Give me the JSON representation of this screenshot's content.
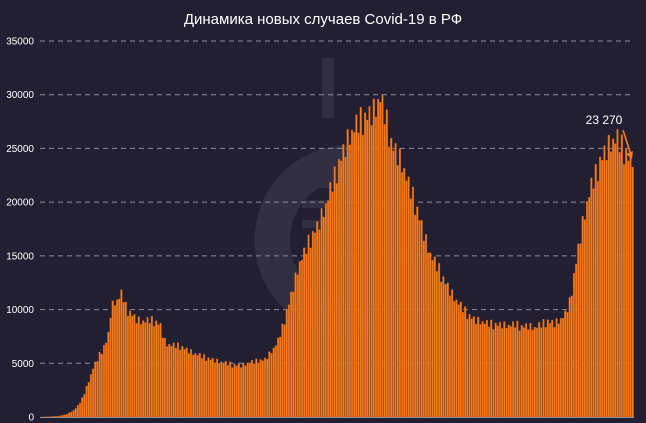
{
  "chart_data": {
    "type": "bar",
    "title": "Динамика новых случаев Covid-19 в РФ",
    "xlabel": "",
    "ylabel": "",
    "ylim": [
      0,
      35000
    ],
    "y_ticks": [
      "35000",
      "30000",
      "25000",
      "20000",
      "15000",
      "10000",
      "5000",
      "0"
    ],
    "y_tick_values": [
      35000,
      30000,
      25000,
      20000,
      15000,
      10000,
      5000,
      0
    ],
    "grid": true,
    "annotation": {
      "text": "23 270",
      "value": 23270
    },
    "colors": {
      "background": "#221f33",
      "bar": "#f47b20",
      "bar_edge": "#b4520c",
      "grid": "#8f8c9e",
      "text": "#ffffff"
    },
    "anchors": [
      [
        0,
        0
      ],
      [
        8,
        80
      ],
      [
        12,
        250
      ],
      [
        15,
        600
      ],
      [
        18,
        1300
      ],
      [
        20,
        2200
      ],
      [
        22,
        3300
      ],
      [
        24,
        4500
      ],
      [
        26,
        5300
      ],
      [
        27,
        5700
      ],
      [
        28,
        6100
      ],
      [
        30,
        6900
      ],
      [
        31,
        7600
      ],
      [
        32,
        9500
      ],
      [
        33,
        10300
      ],
      [
        34,
        10600
      ],
      [
        35,
        10700
      ],
      [
        36,
        11000
      ],
      [
        37,
        11300
      ],
      [
        38,
        10900
      ],
      [
        39,
        10100
      ],
      [
        40,
        9800
      ],
      [
        42,
        9400
      ],
      [
        44,
        9000
      ],
      [
        46,
        8800
      ],
      [
        48,
        8800
      ],
      [
        50,
        8900
      ],
      [
        52,
        8800
      ],
      [
        54,
        8600
      ],
      [
        55,
        8400
      ],
      [
        56,
        7600
      ],
      [
        57,
        7000
      ],
      [
        58,
        6700
      ],
      [
        60,
        6600
      ],
      [
        64,
        6500
      ],
      [
        66,
        6300
      ],
      [
        70,
        5900
      ],
      [
        75,
        5500
      ],
      [
        80,
        5200
      ],
      [
        85,
        4950
      ],
      [
        88,
        4800
      ],
      [
        92,
        4750
      ],
      [
        96,
        5000
      ],
      [
        100,
        5150
      ],
      [
        103,
        5300
      ],
      [
        105,
        5800
      ],
      [
        107,
        6300
      ],
      [
        109,
        7000
      ],
      [
        111,
        8200
      ],
      [
        113,
        9700
      ],
      [
        115,
        11200
      ],
      [
        117,
        12800
      ],
      [
        119,
        14200
      ],
      [
        121,
        15000
      ],
      [
        123,
        16000
      ],
      [
        125,
        16800
      ],
      [
        127,
        17500
      ],
      [
        129,
        18500
      ],
      [
        131,
        19500
      ],
      [
        133,
        20800
      ],
      [
        135,
        22000
      ],
      [
        137,
        23300
      ],
      [
        139,
        24400
      ],
      [
        141,
        25500
      ],
      [
        143,
        26200
      ],
      [
        145,
        26800
      ],
      [
        147,
        27200
      ],
      [
        149,
        27500
      ],
      [
        151,
        27800
      ],
      [
        153,
        28200
      ],
      [
        154,
        28500
      ],
      [
        155,
        29000
      ],
      [
        156,
        29300
      ],
      [
        157,
        28600
      ],
      [
        158,
        27800
      ],
      [
        159,
        27000
      ],
      [
        160,
        26200
      ],
      [
        161,
        25200
      ],
      [
        162,
        24800
      ],
      [
        163,
        24500
      ],
      [
        165,
        23800
      ],
      [
        167,
        22700
      ],
      [
        169,
        21300
      ],
      [
        171,
        20200
      ],
      [
        173,
        19000
      ],
      [
        175,
        17600
      ],
      [
        177,
        16200
      ],
      [
        179,
        15000
      ],
      [
        181,
        14200
      ],
      [
        183,
        13500
      ],
      [
        185,
        12700
      ],
      [
        187,
        12000
      ],
      [
        189,
        11300
      ],
      [
        191,
        10700
      ],
      [
        193,
        10200
      ],
      [
        195,
        9700
      ],
      [
        197,
        9300
      ],
      [
        199,
        9000
      ],
      [
        202,
        8800
      ],
      [
        205,
        8600
      ],
      [
        208,
        8500
      ],
      [
        212,
        8500
      ],
      [
        215,
        8400
      ],
      [
        218,
        8500
      ],
      [
        221,
        8300
      ],
      [
        224,
        8400
      ],
      [
        227,
        8200
      ],
      [
        230,
        8500
      ],
      [
        233,
        8800
      ],
      [
        236,
        8600
      ],
      [
        239,
        9000
      ],
      [
        241,
        9400
      ],
      [
        243,
        10500
      ],
      [
        245,
        13000
      ],
      [
        247,
        15500
      ],
      [
        249,
        17800
      ],
      [
        251,
        19700
      ],
      [
        253,
        21200
      ],
      [
        255,
        22200
      ],
      [
        257,
        23500
      ],
      [
        259,
        24300
      ],
      [
        261,
        25000
      ],
      [
        263,
        25400
      ],
      [
        265,
        25500
      ],
      [
        267,
        24800
      ],
      [
        269,
        24200
      ],
      [
        271,
        23500
      ],
      [
        272,
        23270
      ]
    ],
    "jitter": [
      0,
      0.05,
      -0.02,
      0.06,
      -0.04,
      0.03,
      0,
      0.04,
      -0.03,
      0.05,
      -0.02,
      0.02
    ]
  }
}
